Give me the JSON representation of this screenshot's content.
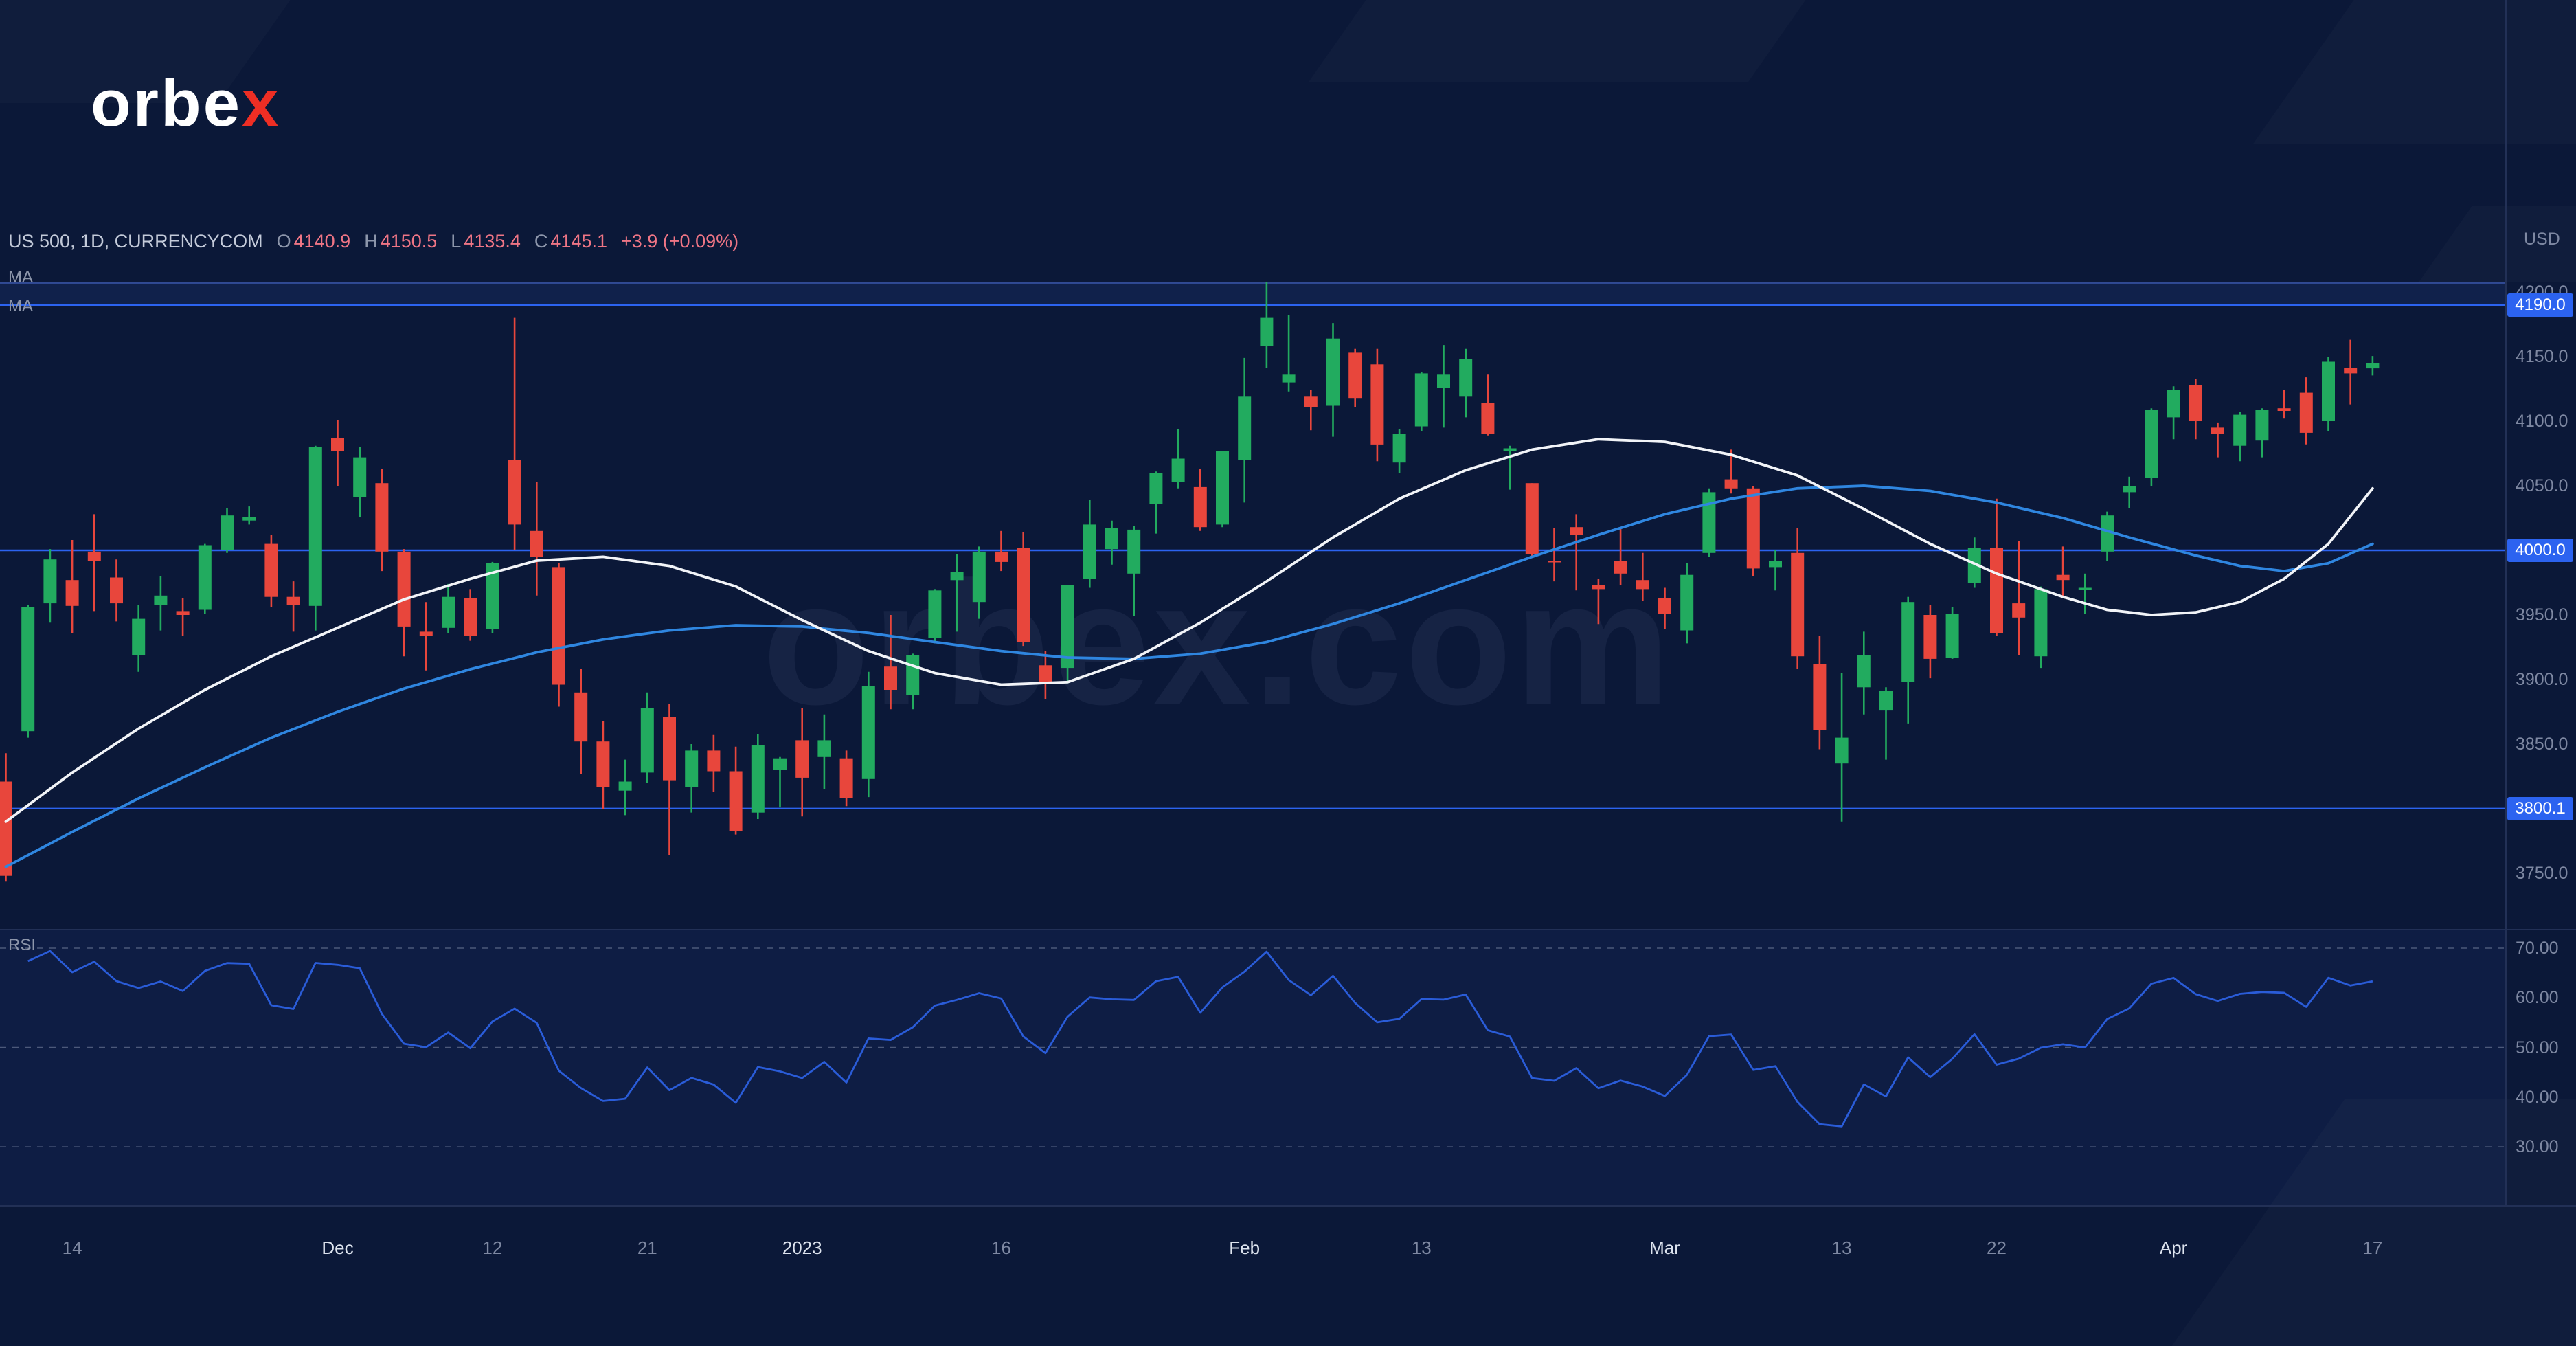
{
  "brand": {
    "name_white": "orbe",
    "name_accent": "x"
  },
  "watermark": "orbex.com",
  "legend": {
    "symbol": "US 500, 1D, CURRENCYCOM",
    "o_label": "O",
    "o_value": "4140.9",
    "h_label": "H",
    "h_value": "4150.5",
    "l_label": "L",
    "l_value": "4135.4",
    "c_label": "C",
    "c_value": "4145.1",
    "change": "+3.9 (+0.09%)"
  },
  "indicators": {
    "ma1": "MA",
    "ma2": "MA",
    "rsi": "RSI"
  },
  "colors": {
    "background": "#0b1838",
    "up": "#22ab5f",
    "down": "#e8463c",
    "ma_fast": "#f2f4f8",
    "ma_slow": "#2f86e0",
    "level_line": "#2c63f0",
    "rsi_line": "#2a5cd8",
    "accent": "#ee2e24",
    "axis_text": "#7e88a2"
  },
  "chart_data": {
    "type": "candlestick",
    "title": "US 500, 1D, CURRENCYCOM",
    "symbol": "US 500",
    "timeframe": "1D",
    "exchange": "CURRENCYCOM",
    "last": {
      "open": 4140.9,
      "high": 4150.5,
      "low": 4135.4,
      "close": 4145.1,
      "change": "+3.9 (+0.09%)"
    },
    "price_axis": {
      "unit_label": "USD",
      "min": 3690,
      "max": 4230,
      "ticks": [
        {
          "label": "4200.0",
          "value": 4200
        },
        {
          "label": "4150.0",
          "value": 4150
        },
        {
          "label": "4100.0",
          "value": 4100
        },
        {
          "label": "4050.0",
          "value": 4050
        },
        {
          "label": "3950.0",
          "value": 3950
        },
        {
          "label": "3900.0",
          "value": 3900
        },
        {
          "label": "3850.0",
          "value": 3850
        },
        {
          "label": "3750.0",
          "value": 3750
        }
      ]
    },
    "levels": [
      {
        "label": "4190.0",
        "value": 4190
      },
      {
        "label": "4000.0",
        "value": 4000
      },
      {
        "label": "3800.1",
        "value": 3800.1
      }
    ],
    "zones": [
      {
        "from": 4190,
        "to": 4207
      }
    ],
    "time_axis": [
      {
        "label": "14",
        "index": 3,
        "major": false
      },
      {
        "label": "Dec",
        "index": 15,
        "major": true
      },
      {
        "label": "12",
        "index": 22,
        "major": false
      },
      {
        "label": "21",
        "index": 29,
        "major": false
      },
      {
        "label": "2023",
        "index": 36,
        "major": true
      },
      {
        "label": "16",
        "index": 45,
        "major": false
      },
      {
        "label": "Feb",
        "index": 56,
        "major": true
      },
      {
        "label": "13",
        "index": 64,
        "major": false
      },
      {
        "label": "Mar",
        "index": 75,
        "major": true
      },
      {
        "label": "13",
        "index": 83,
        "major": false
      },
      {
        "label": "22",
        "index": 90,
        "major": false
      },
      {
        "label": "Apr",
        "index": 98,
        "major": true
      },
      {
        "label": "17",
        "index": 107,
        "major": false
      }
    ],
    "candles": [
      [
        3821,
        3843,
        3744,
        3748
      ],
      [
        3860,
        3958,
        3855,
        3956
      ],
      [
        3959,
        4001,
        3944,
        3993
      ],
      [
        3977,
        4008,
        3936,
        3957
      ],
      [
        3999,
        4028,
        3953,
        3992
      ],
      [
        3979,
        3993,
        3945,
        3959
      ],
      [
        3919,
        3958,
        3906,
        3947
      ],
      [
        3958,
        3980,
        3938,
        3965
      ],
      [
        3953,
        3963,
        3934,
        3950
      ],
      [
        3954,
        4005,
        3951,
        4004
      ],
      [
        4000,
        4033,
        3998,
        4027
      ],
      [
        4023,
        4034,
        4020,
        4026
      ],
      [
        4005,
        4012,
        3956,
        3964
      ],
      [
        3964,
        3976,
        3937,
        3958
      ],
      [
        3957,
        4081,
        3938,
        4080
      ],
      [
        4087,
        4101,
        4050,
        4077
      ],
      [
        4041,
        4080,
        4026,
        4072
      ],
      [
        4052,
        4063,
        3984,
        3999
      ],
      [
        3999,
        4001,
        3918,
        3941
      ],
      [
        3937,
        3960,
        3907,
        3934
      ],
      [
        3940,
        3974,
        3936,
        3964
      ],
      [
        3963,
        3970,
        3930,
        3934
      ],
      [
        3939,
        3991,
        3936,
        3990
      ],
      [
        4070,
        4180,
        4000,
        4020
      ],
      [
        4015,
        4053,
        3965,
        3995
      ],
      [
        3987,
        3990,
        3879,
        3896
      ],
      [
        3890,
        3908,
        3827,
        3852
      ],
      [
        3852,
        3868,
        3800,
        3817
      ],
      [
        3814,
        3838,
        3795,
        3821
      ],
      [
        3828,
        3890,
        3820,
        3878
      ],
      [
        3871,
        3881,
        3764,
        3822
      ],
      [
        3817,
        3850,
        3797,
        3845
      ],
      [
        3845,
        3857,
        3813,
        3829
      ],
      [
        3829,
        3848,
        3780,
        3783
      ],
      [
        3797,
        3858,
        3792,
        3849
      ],
      [
        3830,
        3840,
        3801,
        3839
      ],
      [
        3853,
        3878,
        3794,
        3824
      ],
      [
        3840,
        3873,
        3815,
        3853
      ],
      [
        3839,
        3845,
        3802,
        3808
      ],
      [
        3823,
        3906,
        3809,
        3895
      ],
      [
        3910,
        3950,
        3877,
        3892
      ],
      [
        3888,
        3920,
        3877,
        3919
      ],
      [
        3932,
        3970,
        3928,
        3969
      ],
      [
        3977,
        3997,
        3937,
        3983
      ],
      [
        3960,
        4003,
        3947,
        3999
      ],
      [
        3999,
        4015,
        3984,
        3991
      ],
      [
        4002,
        4014,
        3926,
        3929
      ],
      [
        3911,
        3922,
        3885,
        3898
      ],
      [
        3909,
        3972,
        3897,
        3973
      ],
      [
        3978,
        4039,
        3971,
        4020
      ],
      [
        4001,
        4023,
        3989,
        4017
      ],
      [
        3982,
        4019,
        3949,
        4016
      ],
      [
        4036,
        4061,
        4013,
        4060
      ],
      [
        4053,
        4094,
        4048,
        4071
      ],
      [
        4049,
        4063,
        4015,
        4018
      ],
      [
        4020,
        4077,
        4018,
        4077
      ],
      [
        4070,
        4149,
        4037,
        4119
      ],
      [
        4158,
        4208,
        4141,
        4180
      ],
      [
        4130,
        4182,
        4123,
        4136
      ],
      [
        4119,
        4124,
        4093,
        4111
      ],
      [
        4112,
        4176,
        4088,
        4164
      ],
      [
        4153,
        4156,
        4111,
        4118
      ],
      [
        4144,
        4156,
        4069,
        4082
      ],
      [
        4068,
        4094,
        4060,
        4090
      ],
      [
        4096,
        4138,
        4092,
        4137
      ],
      [
        4126,
        4159,
        4095,
        4136
      ],
      [
        4119,
        4156,
        4103,
        4148
      ],
      [
        4114,
        4136,
        4089,
        4090
      ],
      [
        4077,
        4081,
        4047,
        4079
      ],
      [
        4052,
        4052,
        3995,
        3997
      ],
      [
        3992,
        4017,
        3976,
        3991
      ],
      [
        4018,
        4028,
        3969,
        4012
      ],
      [
        3973,
        3978,
        3943,
        3970
      ],
      [
        3992,
        4018,
        3973,
        3982
      ],
      [
        3977,
        3998,
        3961,
        3970
      ],
      [
        3963,
        3971,
        3939,
        3951
      ],
      [
        3938,
        3990,
        3928,
        3981
      ],
      [
        3998,
        4048,
        3995,
        4045
      ],
      [
        4055,
        4078,
        4044,
        4048
      ],
      [
        4048,
        4050,
        3980,
        3986
      ],
      [
        3987,
        4000,
        3969,
        3992
      ],
      [
        3998,
        4017,
        3908,
        3918
      ],
      [
        3912,
        3934,
        3846,
        3861
      ],
      [
        3835,
        3905,
        3790,
        3855
      ],
      [
        3894,
        3937,
        3873,
        3919
      ],
      [
        3876,
        3894,
        3838,
        3891
      ],
      [
        3898,
        3964,
        3866,
        3960
      ],
      [
        3950,
        3958,
        3901,
        3916
      ],
      [
        3917,
        3956,
        3916,
        3951
      ],
      [
        3975,
        4010,
        3971,
        4002
      ],
      [
        4002,
        4040,
        3934,
        3936
      ],
      [
        3959,
        4007,
        3919,
        3948
      ],
      [
        3918,
        3972,
        3909,
        3970
      ],
      [
        3981,
        4003,
        3963,
        3977
      ],
      [
        3970,
        3982,
        3951,
        3971
      ],
      [
        3999,
        4030,
        3992,
        4027
      ],
      [
        4045,
        4057,
        4033,
        4050
      ],
      [
        4056,
        4110,
        4050,
        4109
      ],
      [
        4103,
        4127,
        4086,
        4124
      ],
      [
        4128,
        4133,
        4086,
        4100
      ],
      [
        4095,
        4099,
        4072,
        4090
      ],
      [
        4081,
        4107,
        4069,
        4105
      ],
      [
        4085,
        4110,
        4072,
        4109
      ],
      [
        4110,
        4124,
        4102,
        4108
      ],
      [
        4122,
        4134,
        4082,
        4091
      ],
      [
        4100,
        4150,
        4092,
        4146
      ],
      [
        4141,
        4163,
        4113,
        4137
      ],
      [
        4140.9,
        4150.5,
        4135.4,
        4145.1
      ]
    ],
    "ma_fast_anchors": [
      [
        0,
        3790
      ],
      [
        3,
        3828
      ],
      [
        6,
        3862
      ],
      [
        9,
        3892
      ],
      [
        12,
        3918
      ],
      [
        15,
        3940
      ],
      [
        18,
        3962
      ],
      [
        21,
        3978
      ],
      [
        24,
        3992
      ],
      [
        27,
        3995
      ],
      [
        30,
        3988
      ],
      [
        33,
        3972
      ],
      [
        36,
        3946
      ],
      [
        39,
        3922
      ],
      [
        42,
        3905
      ],
      [
        45,
        3896
      ],
      [
        48,
        3898
      ],
      [
        51,
        3916
      ],
      [
        54,
        3944
      ],
      [
        57,
        3976
      ],
      [
        60,
        4010
      ],
      [
        63,
        4040
      ],
      [
        66,
        4062
      ],
      [
        69,
        4078
      ],
      [
        72,
        4086
      ],
      [
        75,
        4084
      ],
      [
        78,
        4074
      ],
      [
        81,
        4058
      ],
      [
        84,
        4032
      ],
      [
        87,
        4005
      ],
      [
        90,
        3982
      ],
      [
        93,
        3964
      ],
      [
        95,
        3954
      ],
      [
        97,
        3950
      ],
      [
        99,
        3952
      ],
      [
        101,
        3960
      ],
      [
        103,
        3978
      ],
      [
        105,
        4005
      ],
      [
        107,
        4048
      ]
    ],
    "ma_slow_anchors": [
      [
        0,
        3755
      ],
      [
        3,
        3782
      ],
      [
        6,
        3808
      ],
      [
        9,
        3832
      ],
      [
        12,
        3855
      ],
      [
        15,
        3875
      ],
      [
        18,
        3893
      ],
      [
        21,
        3908
      ],
      [
        24,
        3921
      ],
      [
        27,
        3931
      ],
      [
        30,
        3938
      ],
      [
        33,
        3942
      ],
      [
        36,
        3941
      ],
      [
        39,
        3936
      ],
      [
        42,
        3929
      ],
      [
        45,
        3922
      ],
      [
        48,
        3917
      ],
      [
        51,
        3916
      ],
      [
        54,
        3920
      ],
      [
        57,
        3929
      ],
      [
        60,
        3943
      ],
      [
        63,
        3959
      ],
      [
        66,
        3977
      ],
      [
        69,
        3995
      ],
      [
        72,
        4012
      ],
      [
        75,
        4028
      ],
      [
        78,
        4040
      ],
      [
        81,
        4048
      ],
      [
        84,
        4050
      ],
      [
        87,
        4046
      ],
      [
        90,
        4037
      ],
      [
        93,
        4025
      ],
      [
        96,
        4010
      ],
      [
        99,
        3996
      ],
      [
        101,
        3988
      ],
      [
        103,
        3984
      ],
      [
        105,
        3990
      ],
      [
        107,
        4005
      ]
    ],
    "rsi": {
      "period": 14,
      "bands": [
        70,
        50,
        30
      ],
      "ticks": [
        {
          "label": "70.00",
          "value": 70
        },
        {
          "label": "60.00",
          "value": 60
        },
        {
          "label": "50.00",
          "value": 50
        },
        {
          "label": "40.00",
          "value": 40
        },
        {
          "label": "30.00",
          "value": 30
        }
      ]
    }
  }
}
